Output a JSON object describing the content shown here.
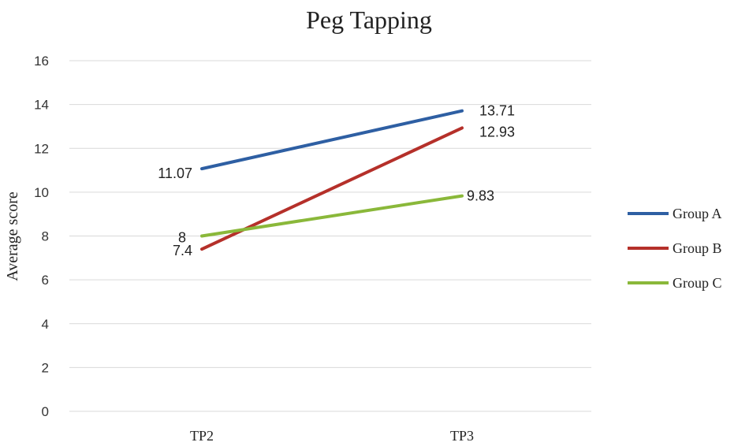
{
  "chart_data": {
    "type": "line",
    "title": "Peg Tapping",
    "xlabel": "",
    "ylabel": "Average score",
    "categories": [
      "TP2",
      "TP3"
    ],
    "ylim": [
      0,
      16
    ],
    "yticks": [
      0,
      2,
      4,
      6,
      8,
      10,
      12,
      14,
      16
    ],
    "grid": true,
    "legend_position": "right",
    "series": [
      {
        "name": "Group A",
        "values": [
          11.07,
          13.71
        ],
        "labels": [
          "11.07",
          "13.71"
        ],
        "color": "#2e5fa3"
      },
      {
        "name": "Group B",
        "values": [
          7.4,
          12.93
        ],
        "labels": [
          "7.4",
          "12.93"
        ],
        "color": "#b5302a"
      },
      {
        "name": "Group C",
        "values": [
          8,
          9.83
        ],
        "labels": [
          "8",
          "9.83"
        ],
        "color": "#8ab83a"
      }
    ]
  }
}
